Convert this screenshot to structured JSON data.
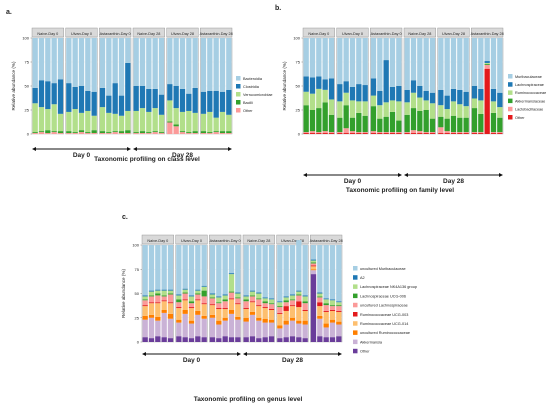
{
  "panels": [
    {
      "letter": "a.",
      "ylabel": "Relative abundance (%)",
      "yticks": [
        "0",
        "25",
        "50",
        "75",
        "100"
      ],
      "groups": [
        "Naive-Day 0",
        "Ulvan-Day 0",
        "Astaxanthin-Day 0",
        "Naive-Day 28",
        "Ulvan-Day 28",
        "Astaxanthin-Day 28"
      ],
      "day_labels": [
        "Day 0",
        "Day 28"
      ],
      "caption": "Taxonomic profiling on class level",
      "legend": [
        {
          "label": "Bacteroidia",
          "color": "#a6cee3"
        },
        {
          "label": "Clostridia",
          "color": "#1f78b4"
        },
        {
          "label": "Verrucomicrobiae",
          "color": "#b2df8a"
        },
        {
          "label": "Bacilli",
          "color": "#33a02c"
        },
        {
          "label": "Other",
          "color": "#fb9a99"
        }
      ]
    },
    {
      "letter": "b.",
      "ylabel": "Relative abundance (%)",
      "yticks": [
        "0",
        "25",
        "50",
        "75",
        "100"
      ],
      "groups": [
        "Naive-Day 0",
        "Ulvan-Day 0",
        "Astaxanthin-Day 0",
        "Naive-Day 28",
        "Ulvan-Day 28",
        "Astaxanthin-Day 28"
      ],
      "day_labels": [
        "Day 0",
        "Day 28"
      ],
      "caption": "Taxonomic profiling on family level",
      "legend": [
        {
          "label": "Muribaculaceae",
          "color": "#a6cee3"
        },
        {
          "label": "Lachnospiraceae",
          "color": "#1f78b4"
        },
        {
          "label": "Ruminococcaceae",
          "color": "#b2df8a"
        },
        {
          "label": "Akkermansiaceae",
          "color": "#33a02c"
        },
        {
          "label": "Lactobacillaceae",
          "color": "#fb9a99"
        },
        {
          "label": "Other",
          "color": "#e31a1c"
        }
      ]
    },
    {
      "letter": "c.",
      "ylabel": "Relative abundance (%)",
      "yticks": [
        "0",
        "25",
        "50",
        "75",
        "100"
      ],
      "groups": [
        "Naive-Day 0",
        "Ulvan-Day 0",
        "Astaxanthin-Day 0",
        "Naive-Day 28",
        "Ulvan-Day 28",
        "Astaxanthin-Day 28"
      ],
      "day_labels": [
        "Day 0",
        "Day 28"
      ],
      "caption": "Taxonomic profiling on genus level",
      "legend": [
        {
          "label": "uncultured Muribaculaceae",
          "color": "#a6cee3"
        },
        {
          "label": "A2",
          "color": "#1f78b4"
        },
        {
          "label": "Lachnospiraceae NK4A136 group",
          "color": "#b2df8a"
        },
        {
          "label": "Lachnospiraceae UCG-006",
          "color": "#33a02c"
        },
        {
          "label": "uncultured Lachnospiraceae",
          "color": "#fb9a99"
        },
        {
          "label": "Ruminococcaceae UCG-003",
          "color": "#e31a1c"
        },
        {
          "label": "Ruminococcaceae UCG-014",
          "color": "#fdbf6f"
        },
        {
          "label": "uncultured Ruminococcaceae",
          "color": "#ff7f00"
        },
        {
          "label": "Akkermansia",
          "color": "#cab2d6"
        },
        {
          "label": "Other",
          "color": "#6a3d9a"
        }
      ]
    }
  ],
  "chart_data": [
    {
      "type": "bar",
      "stacked": true,
      "title": "Taxonomic profiling on class level",
      "ylabel": "Relative abundance (%)",
      "ylim": [
        0,
        100
      ],
      "facets": [
        "Naive-Day 0",
        "Ulvan-Day 0",
        "Astaxanthin-Day 0",
        "Naive-Day 28",
        "Ulvan-Day 28",
        "Astaxanthin-Day 28"
      ],
      "bars_per_facet": 5,
      "series": [
        {
          "name": "Other",
          "values": [
            1,
            2,
            1,
            2,
            1,
            1,
            1,
            2,
            1,
            1,
            1,
            1,
            2,
            1,
            1,
            1,
            1,
            1,
            2,
            1,
            12,
            8,
            2,
            1,
            1,
            1,
            1,
            2,
            1,
            1
          ]
        },
        {
          "name": "Bacilli",
          "values": [
            1,
            1,
            3,
            1,
            2,
            2,
            1,
            2,
            1,
            3,
            2,
            1,
            1,
            2,
            3,
            1,
            2,
            1,
            1,
            1,
            1,
            2,
            1,
            1,
            2,
            2,
            1,
            1,
            2,
            2
          ]
        },
        {
          "name": "Verrucomicrobiae",
          "values": [
            30,
            25,
            22,
            28,
            18,
            20,
            24,
            18,
            22,
            15,
            25,
            20,
            18,
            16,
            20,
            22,
            24,
            21,
            24,
            18,
            22,
            17,
            20,
            22,
            19,
            18,
            21,
            14,
            20,
            17
          ]
        },
        {
          "name": "Clostridia",
          "values": [
            16,
            28,
            29,
            22,
            36,
            30,
            23,
            28,
            21,
            25,
            20,
            18,
            32,
            21,
            50,
            26,
            23,
            24,
            20,
            21,
            17,
            23,
            24,
            18,
            26,
            23,
            22,
            28,
            21,
            26
          ]
        },
        {
          "name": "Bacteroidia",
          "values": [
            52,
            44,
            45,
            47,
            43,
            47,
            51,
            50,
            55,
            56,
            52,
            60,
            47,
            60,
            26,
            50,
            50,
            53,
            53,
            59,
            48,
            50,
            53,
            58,
            52,
            56,
            55,
            55,
            56,
            54
          ]
        }
      ]
    },
    {
      "type": "bar",
      "stacked": true,
      "title": "Taxonomic profiling on family level",
      "ylabel": "Relative abundance (%)",
      "ylim": [
        0,
        100
      ],
      "facets": [
        "Naive-Day 0",
        "Ulvan-Day 0",
        "Astaxanthin-Day 0",
        "Naive-Day 28",
        "Ulvan-Day 28",
        "Astaxanthin-Day 28"
      ],
      "bars_per_facet": 5,
      "series": [
        {
          "name": "Other",
          "values": [
            1,
            1,
            1,
            1,
            1,
            1,
            1,
            1,
            1,
            1,
            1,
            1,
            1,
            1,
            1,
            1,
            1,
            1,
            1,
            1,
            1,
            1,
            1,
            1,
            1,
            1,
            1,
            68,
            1,
            1
          ]
        },
        {
          "name": "Lactobacillaceae",
          "values": [
            1,
            2,
            1,
            2,
            1,
            1,
            5,
            2,
            1,
            1,
            2,
            1,
            1,
            1,
            1,
            1,
            3,
            2,
            1,
            1,
            6,
            2,
            1,
            1,
            1,
            1,
            1,
            4,
            1,
            1
          ]
        },
        {
          "name": "Akkermansiaceae",
          "values": [
            28,
            22,
            25,
            30,
            18,
            15,
            24,
            14,
            20,
            17,
            26,
            14,
            16,
            21,
            12,
            18,
            23,
            21,
            23,
            14,
            11,
            13,
            17,
            15,
            15,
            25,
            19,
            1,
            20,
            15
          ]
        },
        {
          "name": "Ruminococcaceae",
          "values": [
            14,
            17,
            20,
            13,
            16,
            17,
            13,
            18,
            12,
            15,
            11,
            14,
            15,
            12,
            20,
            13,
            16,
            14,
            10,
            16,
            12,
            10,
            15,
            14,
            12,
            10,
            14,
            1,
            12,
            11
          ]
        },
        {
          "name": "Lachnospiraceae",
          "values": [
            16,
            17,
            13,
            11,
            22,
            18,
            12,
            14,
            18,
            17,
            18,
            15,
            44,
            14,
            16,
            13,
            13,
            12,
            10,
            11,
            16,
            14,
            13,
            15,
            15,
            13,
            12,
            2,
            13,
            15
          ]
        },
        {
          "name": "Muribaculaceae",
          "values": [
            40,
            41,
            40,
            43,
            42,
            48,
            45,
            51,
            48,
            49,
            42,
            55,
            23,
            51,
            50,
            54,
            44,
            50,
            55,
            57,
            54,
            60,
            53,
            54,
            56,
            50,
            53,
            24,
            53,
            57
          ]
        }
      ]
    },
    {
      "type": "bar",
      "stacked": true,
      "title": "Taxonomic profiling on genus level",
      "ylabel": "Relative abundance (%)",
      "ylim": [
        0,
        100
      ],
      "facets": [
        "Naive-Day 0",
        "Ulvan-Day 0",
        "Astaxanthin-Day 0",
        "Naive-Day 28",
        "Ulvan-Day 28",
        "Astaxanthin-Day 28"
      ],
      "bars_per_facet": 5,
      "series": [
        {
          "name": "Other",
          "values": [
            5,
            4,
            6,
            5,
            4,
            6,
            5,
            4,
            6,
            5,
            5,
            4,
            6,
            5,
            5,
            5,
            6,
            4,
            5,
            6,
            4,
            5,
            6,
            5,
            4,
            70,
            6,
            5,
            5,
            6
          ]
        },
        {
          "name": "Akkermansia",
          "values": [
            18,
            21,
            16,
            25,
            20,
            14,
            24,
            15,
            22,
            19,
            20,
            14,
            16,
            24,
            18,
            16,
            22,
            18,
            15,
            14,
            10,
            13,
            16,
            14,
            14,
            4,
            18,
            10,
            15,
            12
          ]
        },
        {
          "name": "uncultured Ruminococcaceae",
          "values": [
            4,
            3,
            4,
            3,
            5,
            3,
            4,
            3,
            4,
            3,
            3,
            4,
            3,
            4,
            3,
            4,
            3,
            3,
            4,
            3,
            3,
            4,
            3,
            3,
            4,
            1,
            3,
            4,
            3,
            3
          ]
        },
        {
          "name": "Ruminococcaceae UCG-014",
          "values": [
            10,
            12,
            14,
            9,
            11,
            12,
            10,
            13,
            11,
            12,
            10,
            12,
            9,
            11,
            13,
            9,
            10,
            12,
            11,
            10,
            12,
            10,
            12,
            14,
            10,
            3,
            10,
            12,
            9,
            10
          ]
        },
        {
          "name": "Ruminococcaceae UCG-003",
          "values": [
            1,
            1,
            1,
            1,
            1,
            1,
            1,
            1,
            1,
            1,
            1,
            1,
            1,
            1,
            1,
            1,
            1,
            1,
            1,
            1,
            1,
            5,
            1,
            6,
            1,
            1,
            4,
            1,
            1,
            1
          ]
        },
        {
          "name": "uncultured Lachnospiraceae",
          "values": [
            5,
            6,
            7,
            4,
            8,
            5,
            6,
            4,
            5,
            7,
            6,
            5,
            7,
            6,
            5,
            7,
            5,
            6,
            4,
            5,
            6,
            4,
            5,
            6,
            7,
            2,
            5,
            6,
            4,
            5
          ]
        },
        {
          "name": "Lachnospiraceae UCG-006",
          "values": [
            1,
            1,
            2,
            1,
            1,
            3,
            1,
            2,
            1,
            6,
            1,
            1,
            2,
            1,
            1,
            2,
            1,
            1,
            2,
            1,
            1,
            2,
            1,
            1,
            2,
            1,
            1,
            2,
            1,
            1
          ]
        },
        {
          "name": "Lachnospiraceae NK4A136 group",
          "values": [
            3,
            4,
            3,
            5,
            3,
            4,
            3,
            5,
            3,
            4,
            3,
            5,
            4,
            18,
            4,
            3,
            4,
            5,
            3,
            4,
            4,
            3,
            4,
            3,
            5,
            2,
            3,
            4,
            5,
            3
          ]
        },
        {
          "name": "A2",
          "values": [
            1,
            1,
            1,
            1,
            1,
            1,
            1,
            1,
            1,
            1,
            1,
            1,
            1,
            1,
            1,
            1,
            1,
            1,
            1,
            1,
            1,
            1,
            1,
            1,
            1,
            1,
            1,
            1,
            1,
            1
          ]
        },
        {
          "name": "uncultured Muribaculaceae",
          "values": [
            52,
            47,
            46,
            46,
            46,
            51,
            45,
            52,
            46,
            42,
            50,
            53,
            51,
            29,
            49,
            52,
            47,
            49,
            54,
            55,
            58,
            53,
            51,
            52,
            52,
            15,
            49,
            55,
            56,
            58
          ]
        }
      ]
    }
  ]
}
